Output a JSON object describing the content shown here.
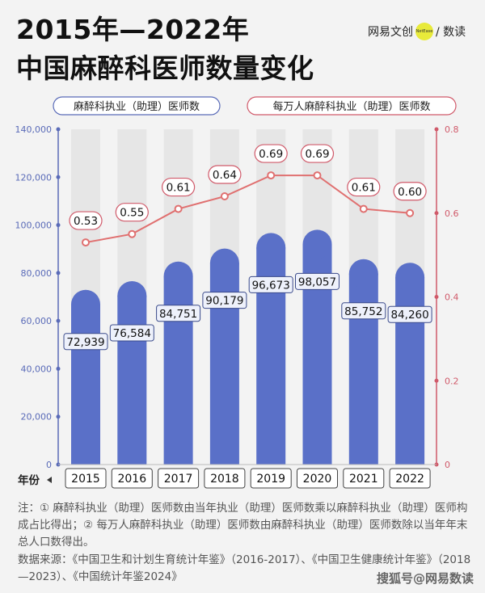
{
  "header": {
    "title_line1": "2015年—2022年",
    "title_line2": "中国麻醉科医师数量变化",
    "brand_left": "网易",
    "brand_mid": "文创",
    "brand_dot": "NetEase",
    "brand_right": "/ 数读"
  },
  "footer": {
    "note": "注：① 麻醉科执业（助理）医师数由当年执业（助理）医师数乘以麻醉科执业（助理）医师构成占比得出；② 每万人麻醉科执业（助理）医师数由麻醉科执业（助理）医师数除以当年年末总人口数得出。",
    "source": "数据来源：《中国卫生和计划生育统计年鉴》（2016-2017）、《中国卫生健康统计年鉴》（2018—2023）、《中国统计年鉴2024》",
    "watermark": "搜狐号@网易数读"
  },
  "colors": {
    "bar": "#5a70c8",
    "line": "#e07070",
    "left_axis": "#5a6bb8",
    "right_axis": "#d05a6a",
    "column_bg": "#e6e6e6"
  },
  "chart_data": {
    "type": "bar",
    "categories": [
      "2015",
      "2016",
      "2017",
      "2018",
      "2019",
      "2020",
      "2021",
      "2022"
    ],
    "x_axis_label": "年份",
    "series": [
      {
        "name": "麻醉科执业（助理）医师数",
        "type": "bar",
        "axis": "left",
        "values": [
          72939,
          76584,
          84751,
          90179,
          96673,
          98057,
          85752,
          84260
        ],
        "labels": [
          "72,939",
          "76,584",
          "84,751",
          "90,179",
          "96,673",
          "98,057",
          "85,752",
          "84,260"
        ]
      },
      {
        "name": "每万人麻醉科执业（助理）医师数",
        "type": "line",
        "axis": "right",
        "values": [
          0.53,
          0.55,
          0.61,
          0.64,
          0.69,
          0.69,
          0.61,
          0.6
        ],
        "labels": [
          "0.53",
          "0.55",
          "0.61",
          "0.64",
          "0.69",
          "0.69",
          "0.61",
          "0.60"
        ]
      }
    ],
    "left_axis": {
      "ylim": [
        0,
        140000
      ],
      "ticks": [
        0,
        20000,
        40000,
        60000,
        80000,
        100000,
        120000,
        140000
      ],
      "tick_labels": [
        "0",
        "20,000",
        "40,000",
        "60,000",
        "80,000",
        "100,000",
        "120,000",
        "140,000"
      ]
    },
    "right_axis": {
      "ylim": [
        0,
        0.8
      ],
      "ticks": [
        0,
        0.2,
        0.4,
        0.6,
        0.8
      ],
      "tick_labels": [
        "0",
        "0.2",
        "0.4",
        "0.6",
        "0.8"
      ]
    },
    "grid": false
  }
}
